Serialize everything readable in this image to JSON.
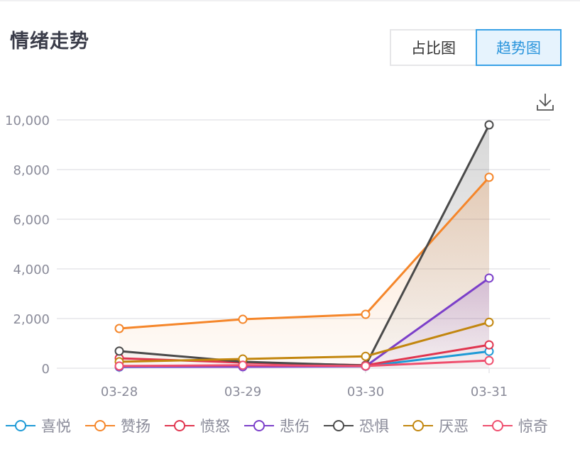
{
  "header": {
    "title": "情绪走势"
  },
  "toggle": {
    "options": [
      {
        "label": "占比图",
        "active": false
      },
      {
        "label": "趋势图",
        "active": true
      }
    ]
  },
  "toolbar": {
    "download_icon": "download-icon"
  },
  "colors": {
    "accent": "#2a95dc",
    "grid": "#ececef",
    "axis_text": "#8a8b99"
  },
  "chart_data": {
    "type": "line",
    "title": "情绪走势",
    "xlabel": "",
    "ylabel": "",
    "categories": [
      "03-28",
      "03-29",
      "03-30",
      "03-31"
    ],
    "y_ticks": [
      "0",
      "2,000",
      "4,000",
      "6,000",
      "8,000",
      "10,000"
    ],
    "ylim": [
      0,
      10000
    ],
    "grid": true,
    "legend_position": "bottom",
    "series": [
      {
        "name": "喜悦",
        "color": "#1e9ad6",
        "values": [
          50,
          80,
          80,
          680
        ]
      },
      {
        "name": "赞扬",
        "color": "#f5862a",
        "values": [
          1600,
          1970,
          2170,
          7690
        ],
        "area": true
      },
      {
        "name": "愤怒",
        "color": "#e0354f",
        "values": [
          400,
          230,
          120,
          940
        ]
      },
      {
        "name": "悲伤",
        "color": "#7b3fc9",
        "values": [
          60,
          60,
          80,
          3630
        ],
        "area": true
      },
      {
        "name": "恐惧",
        "color": "#4a4a4a",
        "values": [
          690,
          260,
          110,
          9800
        ],
        "area": true
      },
      {
        "name": "厌恶",
        "color": "#c2860e",
        "values": [
          260,
          370,
          480,
          1850
        ]
      },
      {
        "name": "惊奇",
        "color": "#ef4f6e",
        "values": [
          90,
          120,
          90,
          310
        ]
      }
    ]
  }
}
